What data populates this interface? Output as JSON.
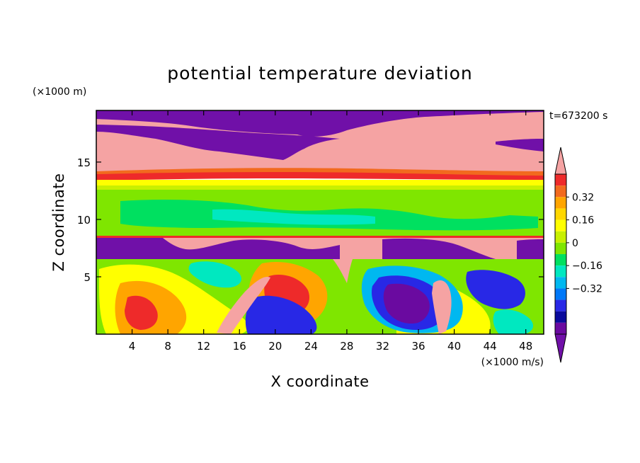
{
  "chart_data": {
    "type": "heatmap",
    "title": "potential temperature deviation",
    "xlabel": "X coordinate",
    "ylabel": "Z coordinate",
    "x_unit": "(×1000 m/s)",
    "y_unit": "(×1000 m)",
    "time_label": "t=673200 s",
    "xlim": [
      0,
      50
    ],
    "ylim": [
      0,
      19.5
    ],
    "x_ticks": [
      4,
      8,
      12,
      16,
      20,
      24,
      28,
      32,
      36,
      40,
      44,
      48
    ],
    "y_ticks": [
      5,
      10,
      15
    ],
    "colorbar": {
      "ticks": [
        0.32,
        0.16,
        0,
        -0.16,
        -0.32
      ],
      "tick_labels": [
        "0.32",
        "0.16",
        "0",
        "−0.16",
        "−0.32"
      ],
      "extend": "both",
      "colors": [
        "#f5a3a3",
        "#ee2a2a",
        "#f26a1e",
        "#ffa500",
        "#ffd700",
        "#ffff00",
        "#c8f000",
        "#7fe600",
        "#00e060",
        "#00e8c0",
        "#00b8f0",
        "#0078f8",
        "#2828e6",
        "#0a0a9c",
        "#6a0aa0",
        "#7010a8"
      ]
    }
  }
}
